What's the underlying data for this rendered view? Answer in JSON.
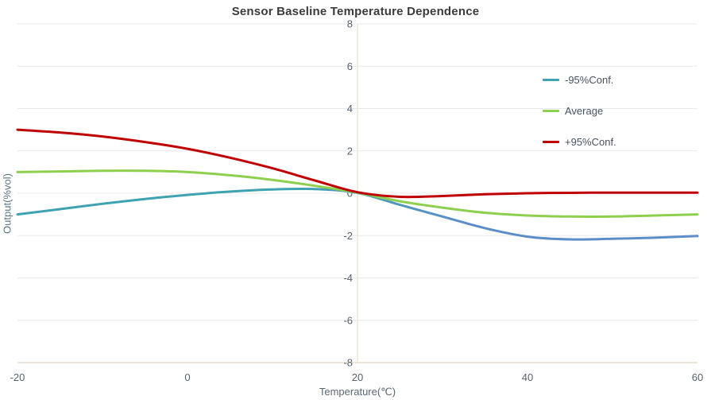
{
  "title": "Sensor Baseline Temperature Dependence",
  "colors": {
    "background": "#ffffff",
    "gridline": "#e8e8e8",
    "axis_line": "#ece7d9",
    "tick_label": "#57616d",
    "title_text": "#3b3b3b",
    "legend_text": "#47525e"
  },
  "chart_data": {
    "type": "line",
    "title": "Sensor Baseline Temperature Dependence",
    "xlabel": "Temperature(℃)",
    "ylabel": "Output(%vol)",
    "xlim": [
      -20,
      60
    ],
    "ylim": [
      -8,
      8
    ],
    "x_ticks": [
      -20,
      0,
      20,
      40,
      60
    ],
    "y_ticks": [
      8,
      6,
      4,
      2,
      0,
      -2,
      -4,
      -6,
      -8
    ],
    "grid": "horizontal-only",
    "legend_position": "inside-right",
    "x": [
      -20,
      -15,
      -10,
      -5,
      0,
      5,
      10,
      15,
      20,
      25,
      30,
      35,
      40,
      45,
      50,
      55,
      60
    ],
    "series": [
      {
        "name": "-95%Conf.",
        "color": "#3fa2b1",
        "color_end": "#5c8dc9",
        "values": [
          -1.0,
          -0.75,
          -0.5,
          -0.27,
          -0.08,
          0.08,
          0.18,
          0.2,
          0.02,
          -0.55,
          -1.1,
          -1.65,
          -2.05,
          -2.18,
          -2.15,
          -2.1,
          -2.02
        ]
      },
      {
        "name": "Average",
        "color": "#8ed04e",
        "values": [
          1.0,
          1.03,
          1.06,
          1.06,
          1.0,
          0.85,
          0.63,
          0.35,
          0.03,
          -0.38,
          -0.68,
          -0.92,
          -1.05,
          -1.1,
          -1.1,
          -1.05,
          -1.0
        ]
      },
      {
        "name": "+95%Conf.",
        "color": "#c00000",
        "values": [
          3.0,
          2.87,
          2.68,
          2.42,
          2.1,
          1.68,
          1.18,
          0.6,
          0.05,
          -0.17,
          -0.13,
          -0.05,
          0.0,
          0.02,
          0.03,
          0.03,
          0.03
        ]
      }
    ]
  }
}
